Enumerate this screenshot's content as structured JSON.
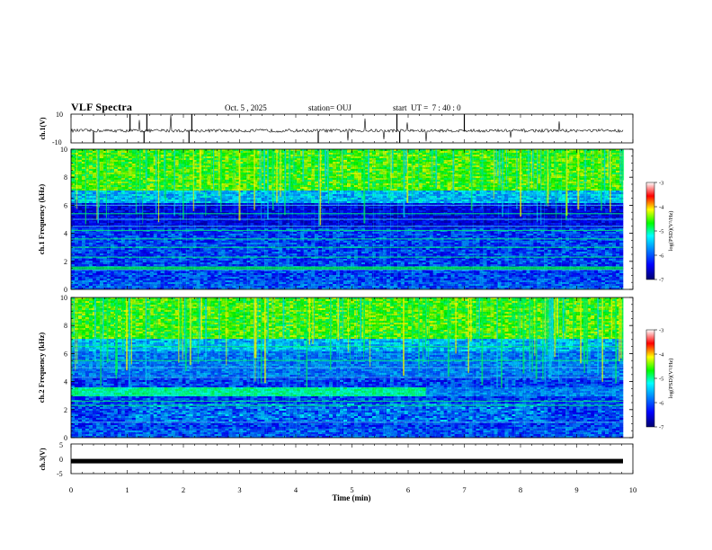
{
  "header": {
    "title": "VLF Spectra",
    "date": "Oct. 5 , 2025",
    "station": "station= OUJ",
    "start": "start  UT =  7 : 40 : 0"
  },
  "chart_data": [
    {
      "type": "line",
      "panel": "ch1-waveform",
      "ylabel": "ch.1(V)",
      "ylim": [
        -10,
        10
      ],
      "yticks": [
        "10",
        "-10"
      ],
      "x_range_min": [
        0,
        9.83
      ]
    },
    {
      "type": "heatmap",
      "panel": "ch1-spectrogram",
      "ylabel": "ch.1 Frequency (kHz)",
      "ylim": [
        0,
        10
      ],
      "yticks": [
        "0",
        "2",
        "4",
        "6",
        "8",
        "10"
      ],
      "colorbar": {
        "label": "log(PSD)(V²/Hz)",
        "range": [
          -7,
          -3
        ],
        "ticks": [
          "-3",
          "-4",
          "-5",
          "-6",
          "-7"
        ]
      },
      "bands_khz": [
        1.4,
        1.6,
        2.3,
        3.0,
        3.6,
        4.2,
        4.5,
        5.0,
        5.4,
        6.0
      ]
    },
    {
      "type": "heatmap",
      "panel": "ch2-spectrogram",
      "ylabel": "ch.2 Frequency (kHz)",
      "ylim": [
        0,
        10
      ],
      "yticks": [
        "0",
        "2",
        "4",
        "6",
        "8",
        "10"
      ],
      "colorbar": {
        "label": "log(PSD)(V²/Hz)",
        "range": [
          -7,
          -3
        ],
        "ticks": [
          "-3",
          "-4",
          "-5",
          "-6",
          "-7"
        ]
      },
      "band_khz": [
        3.0,
        3.6
      ],
      "band_end_min": 6.3
    },
    {
      "type": "line",
      "panel": "ch3-level",
      "ylabel": "ch.3(V)",
      "ylim": [
        -5,
        5
      ],
      "yticks": [
        "5",
        "0",
        "-5"
      ],
      "level_v": -0.8
    }
  ],
  "xaxis": {
    "label": "Time  (min)",
    "range": [
      0,
      10
    ],
    "ticks": [
      "0",
      "1",
      "2",
      "3",
      "4",
      "5",
      "6",
      "7",
      "8",
      "9",
      "10"
    ]
  }
}
